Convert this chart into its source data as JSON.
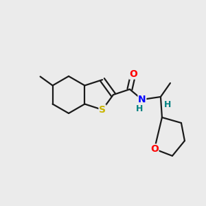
{
  "background_color": "#ebebeb",
  "atom_colors": {
    "S": "#c8b400",
    "N": "#0000ff",
    "O": "#ff0000",
    "H": "#008080"
  },
  "bond_color": "#1a1a1a",
  "bond_lw": 1.6,
  "figsize": [
    3.0,
    3.0
  ],
  "dpi": 100,
  "xlim": [
    0,
    300
  ],
  "ylim": [
    0,
    300
  ]
}
